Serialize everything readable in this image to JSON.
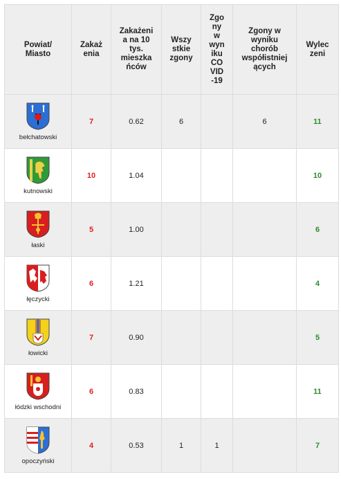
{
  "headers": {
    "powiat": "Powiat/ Miasto",
    "zakazenia": "Zakaż enia",
    "zakazenia_10tys": "Zakażeni a na 10 tys. mieszka ńców",
    "wszystkie_zgony": "Wszy stkie zgony",
    "zgony_covid": "Zgo ny w wyn iku CO VID -19",
    "zgony_wspolistniejace": "Zgony w wyniku chorób współistniej ących",
    "wyleczeni": "Wylec zeni"
  },
  "rows": [
    {
      "name": "bełchatowski",
      "zakazenia": "7",
      "na10": "0.62",
      "wszystkie": "6",
      "covid": "",
      "wspol": "6",
      "wyleczeni": "11",
      "crest": "belchatowski-crest-icon"
    },
    {
      "name": "kutnowski",
      "zakazenia": "10",
      "na10": "1.04",
      "wszystkie": "",
      "covid": "",
      "wspol": "",
      "wyleczeni": "10",
      "crest": "kutnowski-crest-icon"
    },
    {
      "name": "łaski",
      "zakazenia": "5",
      "na10": "1.00",
      "wszystkie": "",
      "covid": "",
      "wspol": "",
      "wyleczeni": "6",
      "crest": "laski-crest-icon"
    },
    {
      "name": "łęczycki",
      "zakazenia": "6",
      "na10": "1.21",
      "wszystkie": "",
      "covid": "",
      "wspol": "",
      "wyleczeni": "4",
      "crest": "leczycki-crest-icon"
    },
    {
      "name": "łowicki",
      "zakazenia": "7",
      "na10": "0.90",
      "wszystkie": "",
      "covid": "",
      "wspol": "",
      "wyleczeni": "5",
      "crest": "lowicki-crest-icon"
    },
    {
      "name": "łódzki wschodni",
      "zakazenia": "6",
      "na10": "0.83",
      "wszystkie": "",
      "covid": "",
      "wspol": "",
      "wyleczeni": "11",
      "crest": "lodzki-wschodni-crest-icon"
    },
    {
      "name": "opoczyński",
      "zakazenia": "4",
      "na10": "0.53",
      "wszystkie": "1",
      "covid": "1",
      "wspol": "",
      "wyleczeni": "7",
      "crest": "opoczynski-crest-icon"
    }
  ],
  "colors": {
    "infections": "#e21f1f",
    "recovered": "#2e8b2e",
    "header_bg": "#eeeeee",
    "row_alt_bg": "#eeeeee"
  }
}
